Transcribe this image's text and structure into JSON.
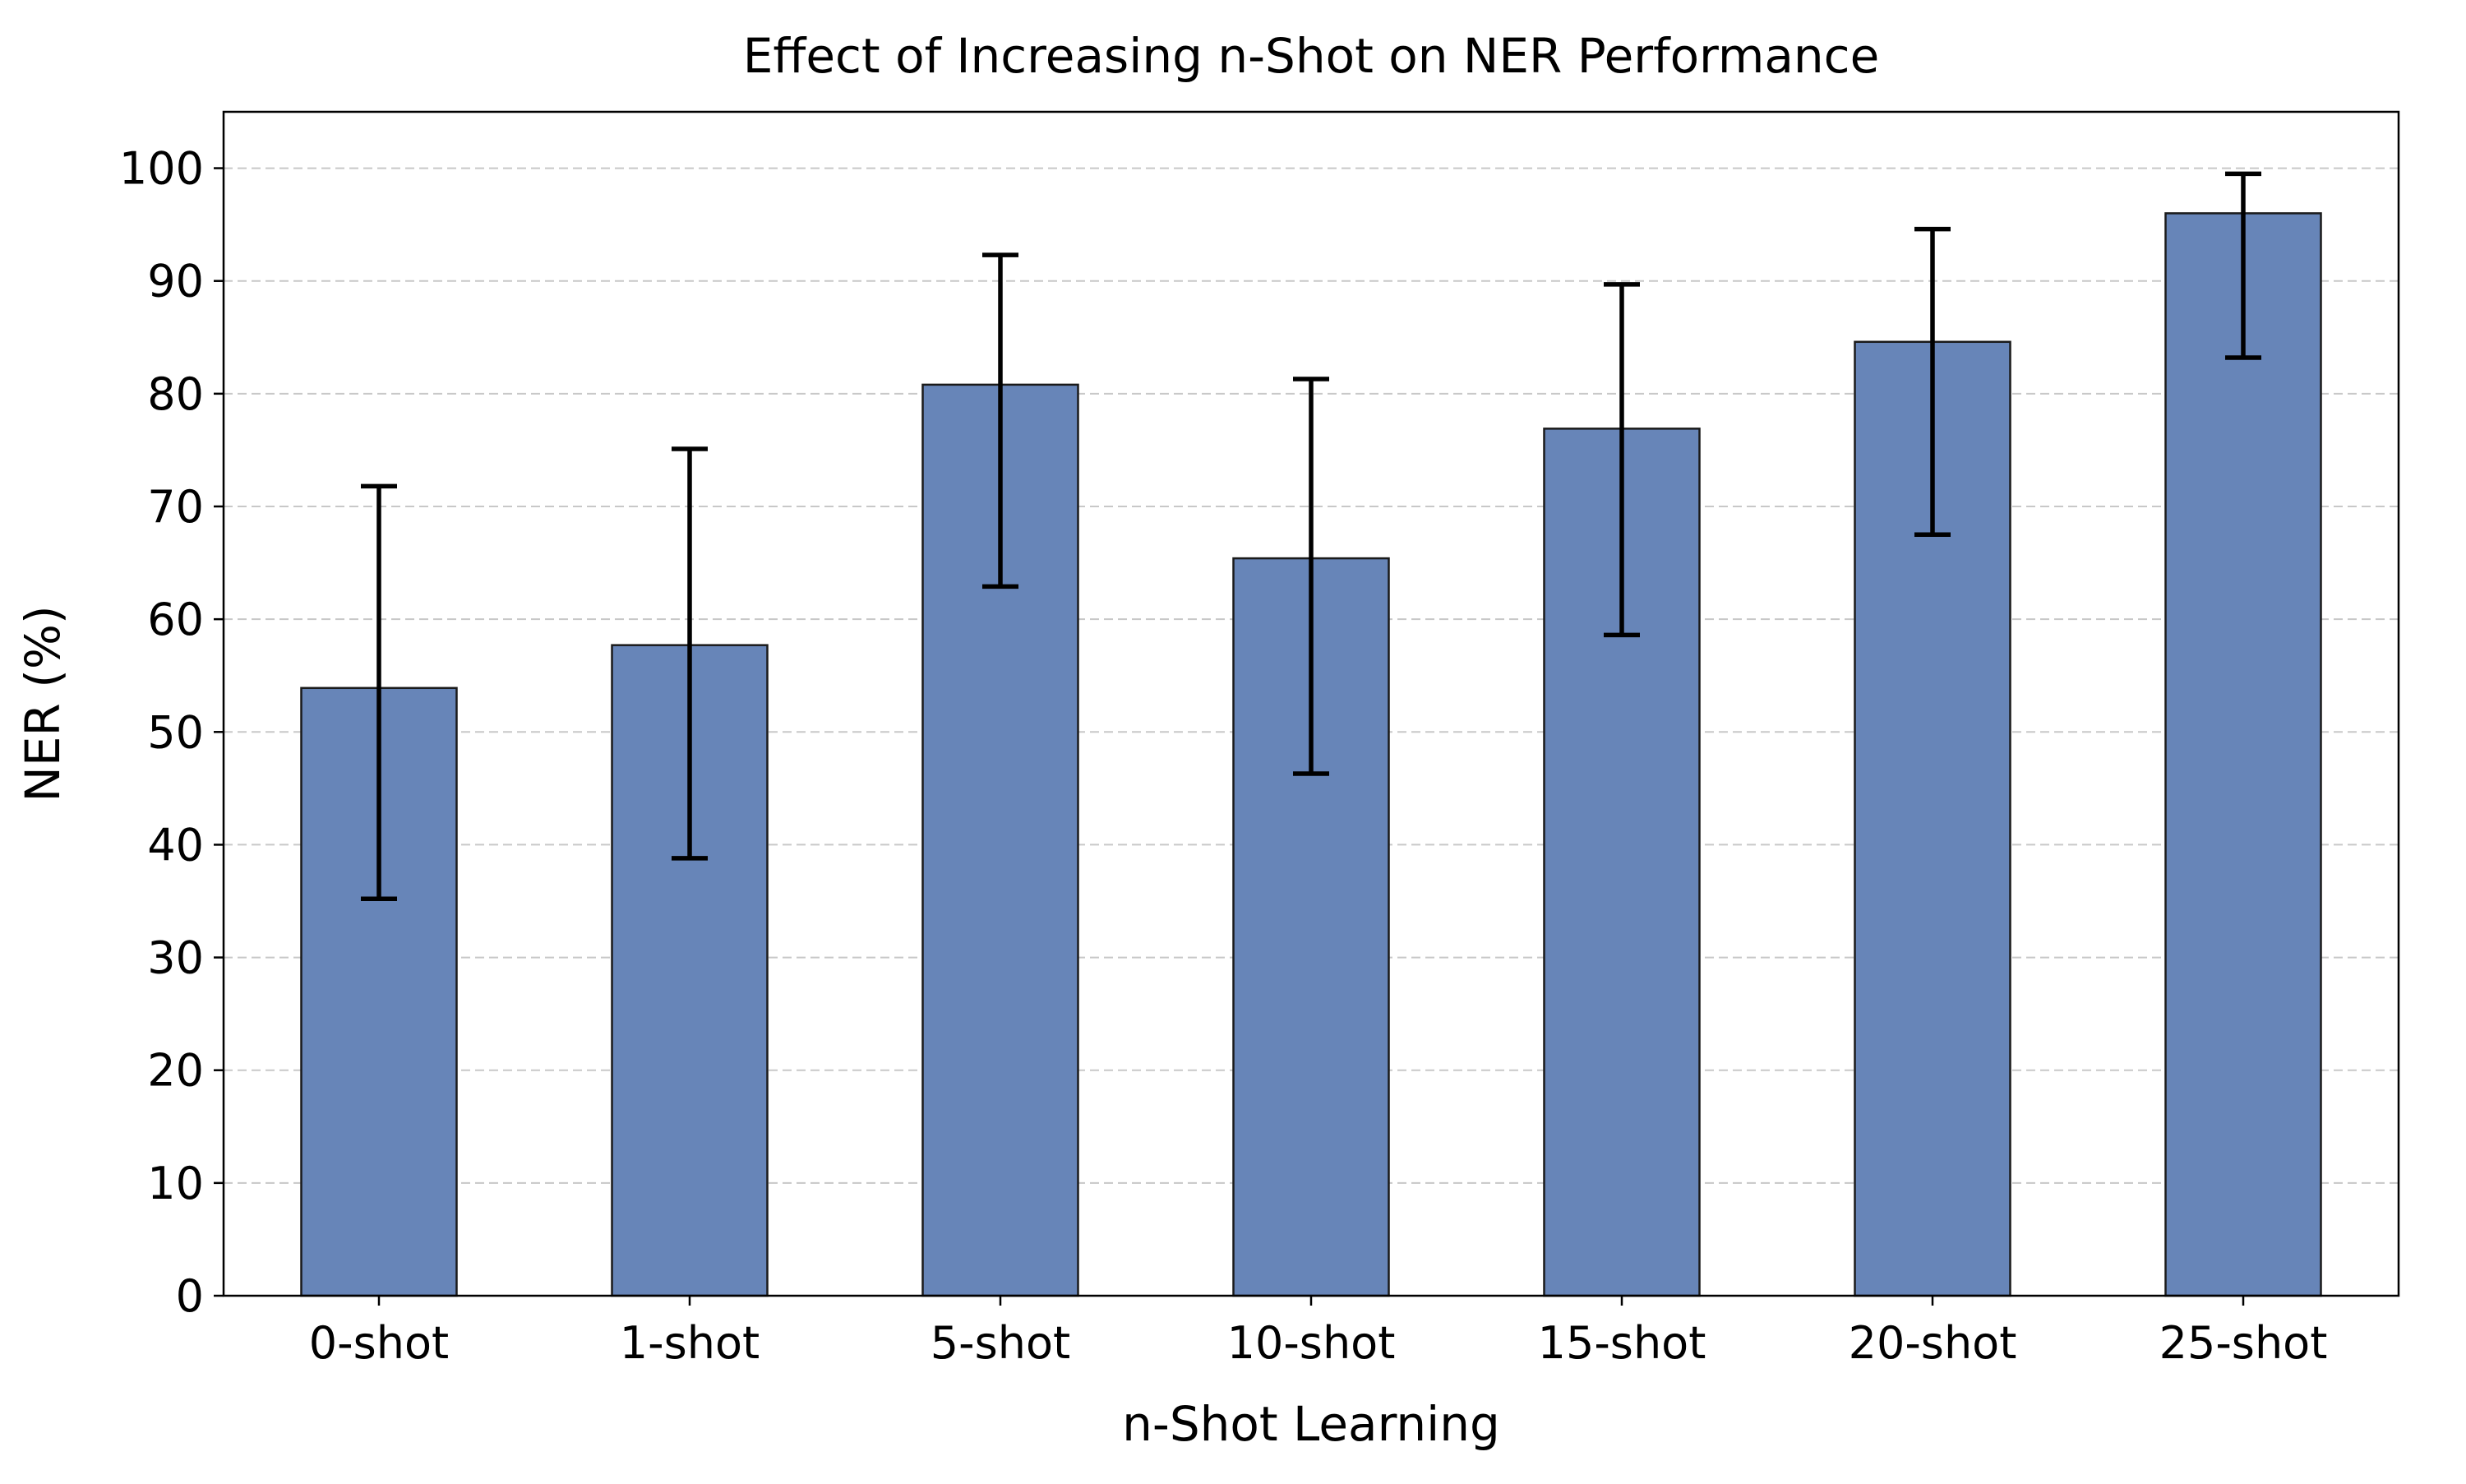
{
  "chart_data": {
    "type": "bar",
    "title": "Effect of Increasing n-Shot on NER Performance",
    "xlabel": "n-Shot Learning",
    "ylabel": "NER (%)",
    "categories": [
      "0-shot",
      "1-shot",
      "5-shot",
      "10-shot",
      "15-shot",
      "20-shot",
      "25-shot"
    ],
    "values": [
      53.9,
      57.7,
      80.8,
      65.4,
      76.9,
      84.6,
      96.0
    ],
    "error_low": [
      35.2,
      38.8,
      62.9,
      46.3,
      58.6,
      67.5,
      83.2
    ],
    "error_high": [
      71.8,
      75.1,
      92.3,
      81.3,
      89.7,
      94.6,
      99.5
    ],
    "ylim": [
      0,
      105
    ],
    "yticks": [
      0,
      10,
      20,
      30,
      40,
      50,
      60,
      70,
      80,
      90,
      100
    ],
    "grid": true,
    "bar_color": "#6785b8"
  }
}
